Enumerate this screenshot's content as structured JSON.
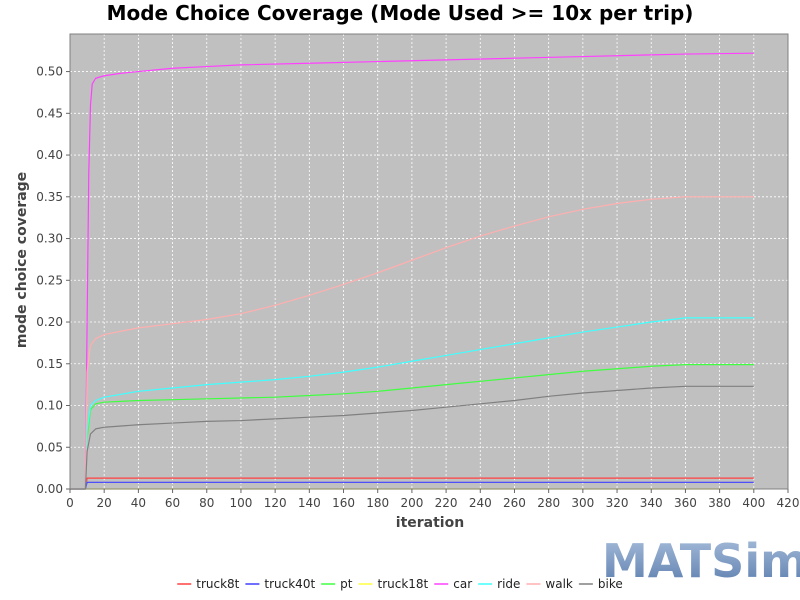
{
  "chart_data": {
    "type": "line",
    "title": "Mode Choice Coverage (Mode Used >= 10x per trip)",
    "xlabel": "iteration",
    "ylabel": "mode choice coverage",
    "xlim": [
      0,
      420
    ],
    "ylim": [
      0,
      0.545
    ],
    "x_ticks": [
      0,
      20,
      40,
      60,
      80,
      100,
      120,
      140,
      160,
      180,
      200,
      220,
      240,
      260,
      280,
      300,
      320,
      340,
      360,
      380,
      400,
      420
    ],
    "y_ticks": [
      "0.00",
      "0.05",
      "0.10",
      "0.15",
      "0.20",
      "0.25",
      "0.30",
      "0.35",
      "0.40",
      "0.45",
      "0.50"
    ],
    "grid": true,
    "legend_position": "bottom",
    "plot_background": "#c0c0c0",
    "series": [
      {
        "name": "truck8t",
        "color": "#ff4040",
        "points": [
          [
            0,
            0
          ],
          [
            9,
            0
          ],
          [
            10,
            0.013
          ],
          [
            400,
            0.013
          ]
        ]
      },
      {
        "name": "truck40t",
        "color": "#4040ff",
        "points": [
          [
            0,
            0
          ],
          [
            9,
            0
          ],
          [
            10,
            0.008
          ],
          [
            400,
            0.008
          ]
        ]
      },
      {
        "name": "pt",
        "color": "#40ff40",
        "points": [
          [
            0,
            0
          ],
          [
            9,
            0
          ],
          [
            10,
            0.06
          ],
          [
            12,
            0.095
          ],
          [
            15,
            0.102
          ],
          [
            20,
            0.104
          ],
          [
            40,
            0.106
          ],
          [
            60,
            0.107
          ],
          [
            80,
            0.108
          ],
          [
            100,
            0.109
          ],
          [
            120,
            0.11
          ],
          [
            140,
            0.112
          ],
          [
            160,
            0.114
          ],
          [
            180,
            0.117
          ],
          [
            200,
            0.121
          ],
          [
            220,
            0.125
          ],
          [
            240,
            0.129
          ],
          [
            260,
            0.133
          ],
          [
            280,
            0.137
          ],
          [
            300,
            0.141
          ],
          [
            320,
            0.144
          ],
          [
            340,
            0.147
          ],
          [
            360,
            0.149
          ],
          [
            380,
            0.149
          ],
          [
            400,
            0.149
          ]
        ]
      },
      {
        "name": "truck18t",
        "color": "#ffff40",
        "points": [
          [
            0,
            0
          ],
          [
            400,
            0
          ]
        ]
      },
      {
        "name": "car",
        "color": "#ff40ff",
        "points": [
          [
            0,
            0
          ],
          [
            9,
            0
          ],
          [
            10,
            0.2
          ],
          [
            11,
            0.38
          ],
          [
            12,
            0.46
          ],
          [
            13,
            0.485
          ],
          [
            15,
            0.492
          ],
          [
            20,
            0.495
          ],
          [
            30,
            0.498
          ],
          [
            40,
            0.5
          ],
          [
            60,
            0.504
          ],
          [
            80,
            0.506
          ],
          [
            100,
            0.508
          ],
          [
            140,
            0.51
          ],
          [
            180,
            0.512
          ],
          [
            220,
            0.514
          ],
          [
            260,
            0.516
          ],
          [
            300,
            0.518
          ],
          [
            340,
            0.52
          ],
          [
            360,
            0.521
          ],
          [
            400,
            0.522
          ]
        ]
      },
      {
        "name": "ride",
        "color": "#40ffff",
        "points": [
          [
            0,
            0
          ],
          [
            9,
            0
          ],
          [
            10,
            0.07
          ],
          [
            12,
            0.1
          ],
          [
            15,
            0.106
          ],
          [
            20,
            0.11
          ],
          [
            40,
            0.117
          ],
          [
            60,
            0.121
          ],
          [
            80,
            0.125
          ],
          [
            100,
            0.128
          ],
          [
            120,
            0.131
          ],
          [
            140,
            0.135
          ],
          [
            160,
            0.14
          ],
          [
            180,
            0.146
          ],
          [
            200,
            0.153
          ],
          [
            220,
            0.16
          ],
          [
            240,
            0.167
          ],
          [
            260,
            0.174
          ],
          [
            280,
            0.181
          ],
          [
            300,
            0.188
          ],
          [
            320,
            0.194
          ],
          [
            340,
            0.2
          ],
          [
            360,
            0.205
          ],
          [
            380,
            0.205
          ],
          [
            400,
            0.205
          ]
        ]
      },
      {
        "name": "walk",
        "color": "#ffafaf",
        "points": [
          [
            0,
            0
          ],
          [
            9,
            0
          ],
          [
            10,
            0.14
          ],
          [
            12,
            0.172
          ],
          [
            15,
            0.18
          ],
          [
            20,
            0.185
          ],
          [
            40,
            0.193
          ],
          [
            60,
            0.198
          ],
          [
            80,
            0.203
          ],
          [
            100,
            0.21
          ],
          [
            120,
            0.22
          ],
          [
            140,
            0.232
          ],
          [
            160,
            0.245
          ],
          [
            180,
            0.259
          ],
          [
            200,
            0.274
          ],
          [
            220,
            0.289
          ],
          [
            240,
            0.303
          ],
          [
            260,
            0.315
          ],
          [
            280,
            0.326
          ],
          [
            300,
            0.335
          ],
          [
            320,
            0.342
          ],
          [
            340,
            0.347
          ],
          [
            360,
            0.35
          ],
          [
            380,
            0.35
          ],
          [
            400,
            0.35
          ]
        ]
      },
      {
        "name": "bike",
        "color": "#808080",
        "points": [
          [
            0,
            0
          ],
          [
            9,
            0
          ],
          [
            10,
            0.045
          ],
          [
            12,
            0.066
          ],
          [
            15,
            0.072
          ],
          [
            20,
            0.074
          ],
          [
            40,
            0.077
          ],
          [
            60,
            0.079
          ],
          [
            80,
            0.081
          ],
          [
            100,
            0.082
          ],
          [
            120,
            0.084
          ],
          [
            140,
            0.086
          ],
          [
            160,
            0.088
          ],
          [
            180,
            0.091
          ],
          [
            200,
            0.094
          ],
          [
            220,
            0.098
          ],
          [
            240,
            0.102
          ],
          [
            260,
            0.106
          ],
          [
            280,
            0.111
          ],
          [
            300,
            0.115
          ],
          [
            320,
            0.118
          ],
          [
            340,
            0.121
          ],
          [
            360,
            0.123
          ],
          [
            380,
            0.123
          ],
          [
            400,
            0.123
          ]
        ]
      }
    ]
  },
  "logo": {
    "text": "MATSim"
  }
}
